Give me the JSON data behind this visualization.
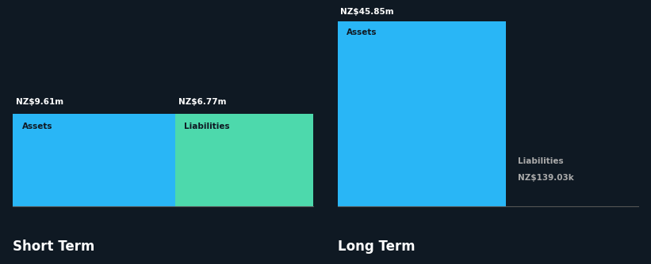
{
  "background_color": "#0f1923",
  "short_term": {
    "assets_value": 9.61,
    "assets_label": "NZ$9.61m",
    "assets_color": "#29b6f6",
    "liabilities_value": 6.77,
    "liabilities_label": "NZ$6.77m",
    "liabilities_color": "#4dd9ac",
    "assets_text": "Assets",
    "liabilities_text": "Liabilities",
    "title": "Short Term"
  },
  "long_term": {
    "assets_value": 45.85,
    "assets_label": "NZ$45.85m",
    "assets_color": "#29b6f6",
    "liabilities_value": 0.13903,
    "liabilities_label": "NZ$139.03k",
    "liabilities_color": "#29b6f6",
    "assets_text": "Assets",
    "liabilities_text": "Liabilities",
    "title": "Long Term"
  },
  "text_color": "#ffffff",
  "label_color": "#aaaaaa",
  "font_size_title": 12,
  "font_size_label": 7.5,
  "font_size_bar_text": 7.5
}
